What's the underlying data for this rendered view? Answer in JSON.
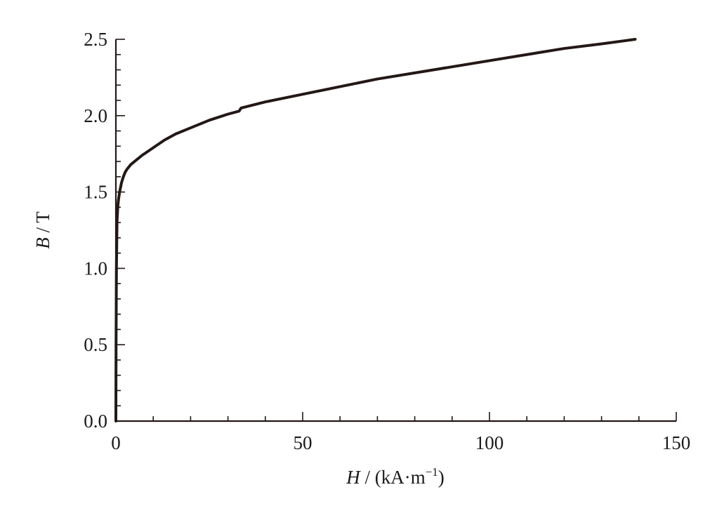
{
  "chart_data": {
    "type": "line",
    "title": "",
    "xlabel": {
      "symbol": "H",
      "separator": " / ",
      "unit": "(kA·m",
      "unit_sup": "−1",
      "unit_close": ")"
    },
    "ylabel": {
      "symbol": "B",
      "separator": " / ",
      "unit": "T"
    },
    "xlim": [
      0,
      150
    ],
    "ylim": [
      0,
      2.5
    ],
    "x_ticks": [
      0,
      50,
      100,
      150
    ],
    "x_tick_labels": [
      "0",
      "50",
      "100",
      "150"
    ],
    "y_ticks": [
      0,
      0.5,
      1.0,
      1.5,
      2.0,
      2.5
    ],
    "y_tick_labels": [
      "0.0",
      "0.5",
      "1.0",
      "1.5",
      "2.0",
      "2.5"
    ],
    "x_minor_step": 10,
    "y_minor_step": 0.1,
    "grid": false,
    "legend": "none",
    "series": [
      {
        "color": "#231815",
        "x": [
          0.0,
          0.05,
          0.15,
          0.3,
          0.5,
          0.7,
          1.0,
          1.5,
          2.0,
          2.5,
          3.0,
          4.0,
          5.0,
          7.0,
          10.0,
          13.0,
          16.0,
          20.0,
          25.0,
          30.0,
          33.0,
          33.5,
          40.0,
          50.0,
          60.0,
          70.0,
          80.0,
          90.0,
          100.0,
          110.0,
          120.0,
          130.0,
          139.0
        ],
        "y": [
          0.0,
          0.5,
          1.0,
          1.3,
          1.4,
          1.45,
          1.5,
          1.56,
          1.6,
          1.63,
          1.65,
          1.68,
          1.7,
          1.74,
          1.79,
          1.84,
          1.88,
          1.92,
          1.97,
          2.01,
          2.03,
          2.05,
          2.09,
          2.14,
          2.19,
          2.24,
          2.28,
          2.32,
          2.36,
          2.4,
          2.44,
          2.47,
          2.5
        ]
      }
    ]
  }
}
